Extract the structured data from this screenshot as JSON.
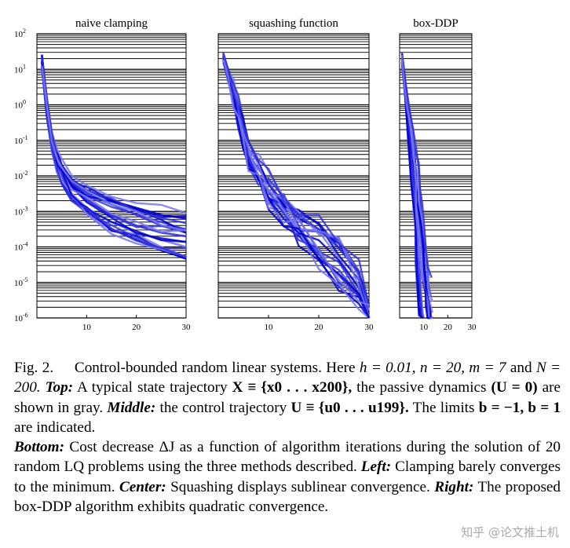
{
  "chart_data": [
    {
      "type": "line",
      "title": "naive clamping",
      "x_ticks": [
        "10",
        "20",
        "30"
      ],
      "y_ticks": [
        "10^2",
        "10^1",
        "10^0",
        "10^-1",
        "10^-2",
        "10^-3",
        "10^-4",
        "10^-5",
        "10^-6"
      ],
      "xlim": [
        0,
        30
      ],
      "ylim_log10": [
        -6,
        2
      ],
      "series_count": 20,
      "series": [
        {
          "x": [
            1,
            2,
            3,
            4,
            5,
            7,
            10,
            15,
            20,
            25,
            30
          ],
          "log10_y": [
            1.4,
            0.2,
            -0.8,
            -1.3,
            -1.7,
            -2.1,
            -2.4,
            -2.7,
            -2.9,
            -3.1,
            -3.2
          ]
        },
        {
          "x": [
            1,
            2,
            3,
            4,
            5,
            7,
            10,
            15,
            20,
            25,
            30
          ],
          "log10_y": [
            1.3,
            0.0,
            -1.0,
            -1.5,
            -1.9,
            -2.3,
            -2.7,
            -3.1,
            -3.4,
            -3.6,
            -3.7
          ]
        },
        {
          "x": [
            1,
            2,
            3,
            4,
            5,
            7,
            10,
            15,
            20,
            25,
            30
          ],
          "log10_y": [
            1.2,
            -0.2,
            -1.1,
            -1.6,
            -2.0,
            -2.5,
            -2.9,
            -3.3,
            -3.6,
            -3.8,
            -4.0
          ]
        },
        {
          "x": [
            1,
            2,
            3,
            4,
            5,
            7,
            10,
            15,
            20,
            25,
            30
          ],
          "log10_y": [
            1.1,
            -0.3,
            -1.3,
            -1.8,
            -2.2,
            -2.6,
            -3.0,
            -3.5,
            -3.8,
            -4.1,
            -4.3
          ]
        },
        {
          "x": [
            1,
            2,
            3,
            4,
            5,
            7,
            10,
            15,
            20,
            25,
            30
          ],
          "log10_y": [
            1.0,
            -0.1,
            -1.0,
            -1.5,
            -1.8,
            -2.2,
            -2.5,
            -2.8,
            -3.1,
            -3.4,
            -3.6
          ]
        }
      ]
    },
    {
      "type": "line",
      "title": "squashing function",
      "x_ticks": [
        "10",
        "20",
        "30"
      ],
      "xlim": [
        0,
        30
      ],
      "ylim_log10": [
        -6,
        2
      ],
      "series_count": 20,
      "series": [
        {
          "x": [
            1,
            2,
            3,
            4,
            5,
            6,
            8,
            10,
            13,
            16,
            20,
            24,
            28,
            30
          ],
          "log10_y": [
            1.4,
            0.9,
            0.5,
            0.0,
            -0.6,
            -1.4,
            -1.8,
            -2.2,
            -2.8,
            -3.2,
            -3.5,
            -3.9,
            -4.8,
            -6.0
          ]
        },
        {
          "x": [
            1,
            2,
            3,
            4,
            5,
            6,
            8,
            10,
            13,
            16,
            20,
            24,
            28,
            30
          ],
          "log10_y": [
            1.3,
            0.7,
            0.2,
            -0.3,
            -0.9,
            -1.6,
            -2.0,
            -2.6,
            -3.0,
            -3.6,
            -4.2,
            -4.8,
            -5.4,
            -6.0
          ]
        }
      ]
    },
    {
      "type": "line",
      "title": "box-DDP",
      "x_ticks": [
        "10",
        "20",
        "30"
      ],
      "xlim": [
        0,
        30
      ],
      "ylim_log10": [
        -6,
        2
      ],
      "series_count": 20,
      "series": [
        {
          "x": [
            1,
            2,
            3,
            4,
            5,
            6,
            7,
            8,
            9,
            10,
            11,
            12,
            13
          ],
          "log10_y": [
            1.4,
            0.8,
            0.2,
            -0.4,
            -1.0,
            -1.6,
            -2.2,
            -2.9,
            -3.6,
            -4.3,
            -5.0,
            -5.6,
            -6.0
          ]
        },
        {
          "x": [
            1,
            2,
            3,
            4,
            5,
            6,
            7,
            8,
            9
          ],
          "log10_y": [
            1.2,
            0.5,
            -0.2,
            -1.0,
            -1.8,
            -2.8,
            -3.8,
            -5.0,
            -6.0
          ]
        }
      ]
    }
  ],
  "caption": {
    "fig_label": "Fig. 2.",
    "title": "Control-bounded random linear systems. Here",
    "params": "h = 0.01, n = 20, m = 7",
    "and": "and",
    "N": "N = 200.",
    "top_label": "Top:",
    "top_text": "A typical state trajectory",
    "state_math": "X ≡ {x0 . . . x200},",
    "passive": "the passive dynamics",
    "u0": "(U = 0)",
    "gray": "are shown in gray.",
    "middle_label": "Middle:",
    "middle_text": "the control trajectory",
    "ctrl_math": "U ≡ {u0 . . . u199}.",
    "limits": "The limits",
    "limits_math": "b = −1, b = 1",
    "indicated": "are indicated.",
    "bottom_label": "Bottom:",
    "bottom_text": "Cost decrease ΔJ as a function of algorithm iterations during the solution of 20 random LQ problems using the three methods described.",
    "left_label": "Left:",
    "left_text": "Clamping barely converges to the minimum.",
    "center_label": "Center:",
    "center_text": "Squashing displays sublinear convergence.",
    "right_label": "Right:",
    "right_text": "The proposed box-DDP algorithm exhibits quadratic convergence."
  },
  "watermark": "知乎 @论文推土机",
  "colors": {
    "dark_blue": "#0000cc",
    "mid_blue": "#3333dd",
    "light_blue": "#7777ee"
  }
}
